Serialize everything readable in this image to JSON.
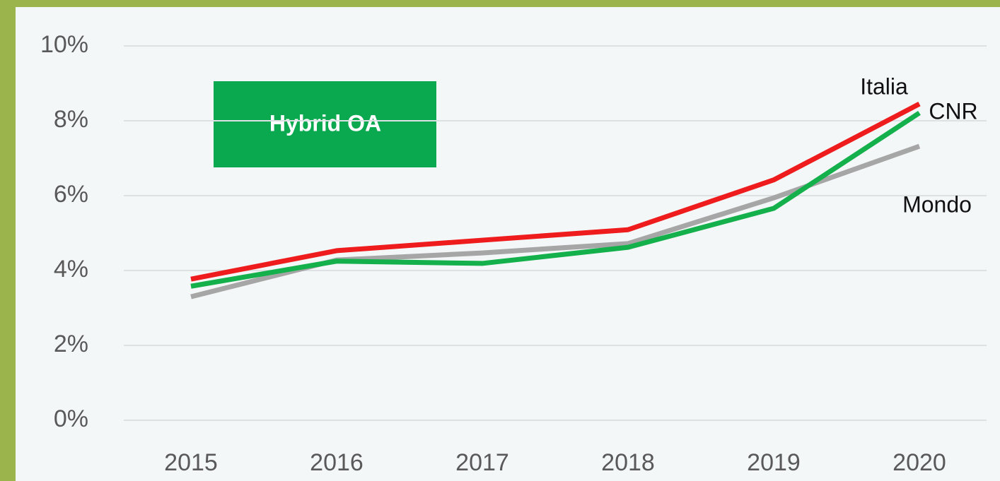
{
  "chart_data": {
    "type": "line",
    "annotation": "Hybrid OA",
    "categories": [
      "2015",
      "2016",
      "2017",
      "2018",
      "2019",
      "2020"
    ],
    "series": [
      {
        "name": "Mondo",
        "color": "#a6a6a6",
        "values": [
          3.3,
          4.28,
          4.47,
          4.72,
          5.94,
          7.32
        ]
      },
      {
        "name": "CNR",
        "color": "#14b04c",
        "values": [
          3.58,
          4.25,
          4.19,
          4.62,
          5.66,
          8.21
        ]
      },
      {
        "name": "Italia",
        "color": "#ee1c1c",
        "values": [
          3.77,
          4.53,
          4.81,
          5.09,
          6.42,
          8.45
        ]
      }
    ],
    "ylim": [
      0,
      10
    ],
    "yticks": [
      {
        "value": 0,
        "label": "0%"
      },
      {
        "value": 2,
        "label": "2%"
      },
      {
        "value": 4,
        "label": "4%"
      },
      {
        "value": 6,
        "label": "6%"
      },
      {
        "value": 8,
        "label": "8%"
      },
      {
        "value": 10,
        "label": "10%"
      }
    ],
    "grid": true
  }
}
